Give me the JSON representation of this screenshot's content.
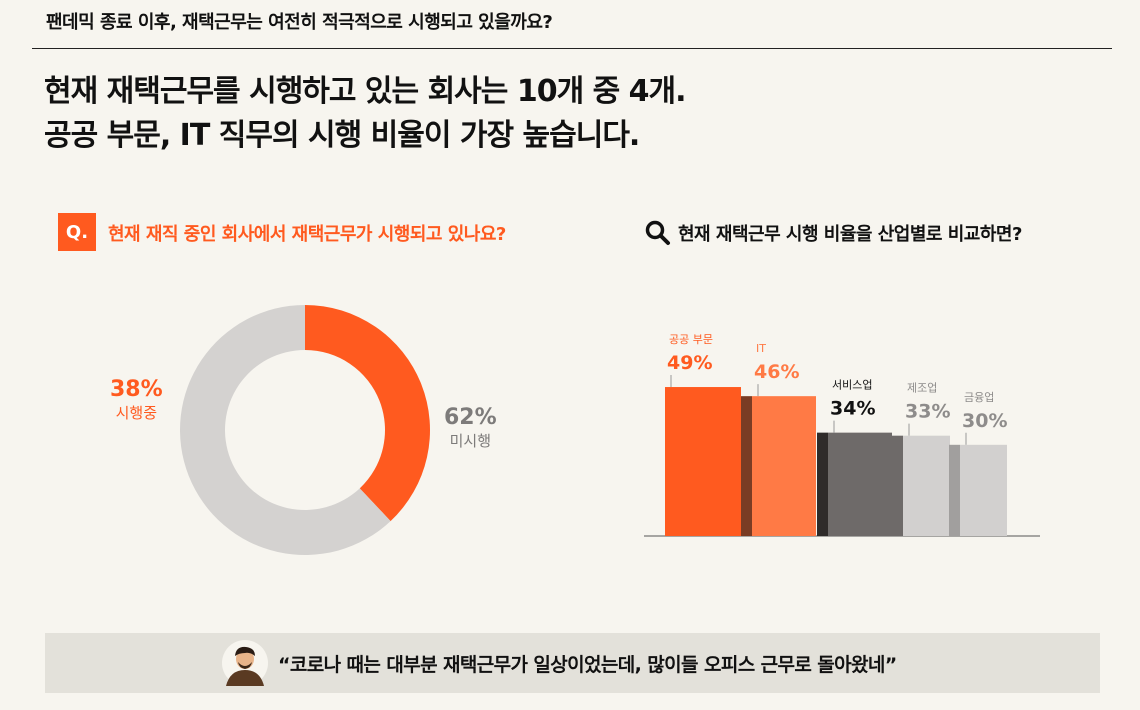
{
  "header": {
    "title": "팬데믹 종료 이후, 재택근무는 여전히 적극적으로 시행되고 있을까요?"
  },
  "headline": {
    "line1": "현재 재택근무를 시행하고 있는 회사는 10개 중 4개.",
    "line2": "공공 부문, IT 직무의 시행 비율이 가장 높습니다."
  },
  "left_section": {
    "q_label": "Q.",
    "question": "현재 재직 중인 회사에서 재택근무가 시행되고 있나요?"
  },
  "right_section": {
    "question": "현재 재택근무 시행 비율을 산업별로 비교하면?",
    "icon": "search-icon"
  },
  "chart_data": [
    {
      "type": "pie",
      "variant": "donut",
      "slices": [
        {
          "label": "시행중",
          "value": 38,
          "display": "38%",
          "color": "#ff5a1f"
        },
        {
          "label": "미시행",
          "value": 62,
          "display": "62%",
          "color": "#d4d2d0"
        }
      ]
    },
    {
      "type": "bar",
      "categories": [
        "공공 부문",
        "IT",
        "서비스업",
        "제조업",
        "금융업"
      ],
      "values": [
        49,
        46,
        34,
        33,
        30
      ],
      "value_labels": [
        "49%",
        "46%",
        "34%",
        "33%",
        "30%"
      ],
      "colors": [
        "#ff5a1f",
        "#ff7a45",
        "#6e6a69",
        "#d2d0cf",
        "#d2d0cf"
      ],
      "shadow_colors": [
        "#7a3c24",
        "#2f2b2a",
        "#6e6a69",
        "#a19f9e"
      ],
      "label_colors": [
        "#ff5a1f",
        "#ff7a45",
        "#111111",
        "#8e8c8b",
        "#8e8c8b"
      ]
    }
  ],
  "quote": {
    "text": "“코로나 때는 대부분 재택근무가 일상이었는데, 많이들 오피스 근무로 돌아왔네”",
    "avatar_icon": "person-avatar-icon"
  }
}
